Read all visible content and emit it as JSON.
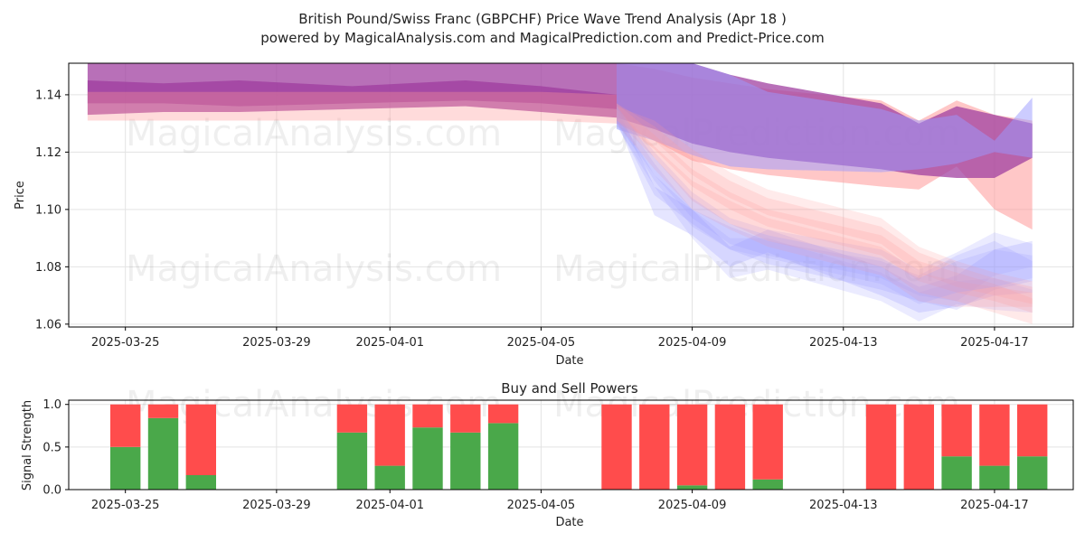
{
  "title_line1": "British Pound/Swiss Franc (GBPCHF) Price Wave Trend Analysis (Apr 18 )",
  "title_line2": "powered by MagicalAnalysis.com and MagicalPrediction.com and Predict-Price.com",
  "watermarks": [
    "MagicalAnalysis.com",
    "MagicalPrediction.com"
  ],
  "colors": {
    "buy": "#4aa84a",
    "sell": "#ff4c4c",
    "band_red": "#ff9999",
    "band_blue": "#9999ff",
    "band_purple": "#a040a0"
  },
  "chart_data": [
    {
      "type": "area",
      "xlabel": "Date",
      "ylabel": "Price",
      "xlim": [
        "2025-03-23T12",
        "2025-04-19T02"
      ],
      "ylim": [
        1.059,
        1.151
      ],
      "x_ticks": [
        "2025-03-25",
        "2025-03-29",
        "2025-04-01",
        "2025-04-05",
        "2025-04-09",
        "2025-04-13",
        "2025-04-17"
      ],
      "y_ticks": [
        1.06,
        1.08,
        1.1,
        1.12,
        1.14
      ],
      "grid": true,
      "history_dates": [
        "2025-03-24",
        "2025-03-26",
        "2025-03-28",
        "2025-03-31",
        "2025-04-03",
        "2025-04-05",
        "2025-04-07"
      ],
      "forecast_dates": [
        "2025-04-07",
        "2025-04-08",
        "2025-04-09",
        "2025-04-10",
        "2025-04-11",
        "2025-04-14",
        "2025-04-15",
        "2025-04-16",
        "2025-04-17",
        "2025-04-18"
      ],
      "series": [
        {
          "color": "purple",
          "opacity": 0.75,
          "lower": [
            1.133,
            1.134,
            1.134,
            1.135,
            1.136,
            1.134,
            1.132
          ],
          "upper": [
            1.151,
            1.151,
            1.151,
            1.151,
            1.151,
            1.151,
            1.151
          ]
        },
        {
          "color": "purple",
          "opacity": 0.8,
          "lower": [
            1.137,
            1.137,
            1.136,
            1.137,
            1.138,
            1.137,
            1.135
          ],
          "upper": [
            1.145,
            1.144,
            1.145,
            1.143,
            1.145,
            1.143,
            1.14
          ]
        },
        {
          "color": "red",
          "opacity": 0.35,
          "lower": [
            1.131,
            1.131,
            1.131,
            1.131,
            1.131,
            1.131,
            1.13
          ],
          "upper": [
            1.141,
            1.141,
            1.141,
            1.141,
            1.141,
            1.141,
            1.14
          ]
        },
        {
          "color": "red",
          "opacity": 0.55,
          "lower": [
            1.13,
            1.124,
            1.117,
            1.114,
            1.112,
            1.108,
            1.107,
            1.115,
            1.1,
            1.093
          ],
          "upper": [
            1.151,
            1.149,
            1.146,
            1.144,
            1.142,
            1.138,
            1.131,
            1.138,
            1.133,
            1.131
          ]
        },
        {
          "color": "purple",
          "opacity": 0.75,
          "lower": [
            1.132,
            1.128,
            1.123,
            1.12,
            1.118,
            1.114,
            1.112,
            1.111,
            1.111,
            1.118
          ],
          "upper": [
            1.151,
            1.151,
            1.151,
            1.147,
            1.144,
            1.137,
            1.13,
            1.136,
            1.133,
            1.13
          ]
        },
        {
          "color": "blue",
          "opacity": 0.5,
          "lower": [
            1.128,
            1.124,
            1.119,
            1.115,
            1.114,
            1.113,
            1.114,
            1.116,
            1.12,
            1.118
          ],
          "upper": [
            1.151,
            1.151,
            1.151,
            1.147,
            1.141,
            1.135,
            1.131,
            1.133,
            1.124,
            1.139
          ]
        },
        {
          "color": "blue",
          "opacity": 0.25,
          "lower": [
            1.131,
            1.098,
            1.091,
            1.08,
            1.085,
            1.07,
            1.064,
            1.066,
            1.07,
            1.071
          ],
          "upper": [
            1.136,
            1.108,
            1.1,
            1.087,
            1.093,
            1.08,
            1.073,
            1.077,
            1.086,
            1.089
          ]
        },
        {
          "color": "blue",
          "opacity": 0.22,
          "lower": [
            1.13,
            1.105,
            1.095,
            1.086,
            1.081,
            1.072,
            1.068,
            1.065,
            1.072,
            1.075
          ],
          "upper": [
            1.134,
            1.112,
            1.1,
            1.094,
            1.089,
            1.082,
            1.077,
            1.084,
            1.089,
            1.082
          ]
        },
        {
          "color": "blue",
          "opacity": 0.2,
          "lower": [
            1.129,
            1.108,
            1.09,
            1.076,
            1.079,
            1.068,
            1.061,
            1.067,
            1.065,
            1.064
          ],
          "upper": [
            1.135,
            1.116,
            1.1,
            1.09,
            1.09,
            1.078,
            1.071,
            1.075,
            1.076,
            1.072
          ]
        },
        {
          "color": "blue",
          "opacity": 0.2,
          "lower": [
            1.13,
            1.112,
            1.097,
            1.088,
            1.084,
            1.076,
            1.07,
            1.068,
            1.077,
            1.08
          ],
          "upper": [
            1.136,
            1.12,
            1.106,
            1.097,
            1.093,
            1.086,
            1.079,
            1.085,
            1.092,
            1.088
          ]
        },
        {
          "color": "red",
          "opacity": 0.22,
          "lower": [
            1.131,
            1.118,
            1.103,
            1.095,
            1.089,
            1.08,
            1.071,
            1.068,
            1.064,
            1.06
          ],
          "upper": [
            1.137,
            1.126,
            1.114,
            1.106,
            1.1,
            1.091,
            1.082,
            1.078,
            1.074,
            1.069
          ]
        },
        {
          "color": "red",
          "opacity": 0.22,
          "lower": [
            1.131,
            1.121,
            1.108,
            1.1,
            1.094,
            1.084,
            1.075,
            1.071,
            1.068,
            1.064
          ],
          "upper": [
            1.137,
            1.129,
            1.118,
            1.11,
            1.104,
            1.094,
            1.085,
            1.08,
            1.076,
            1.073
          ]
        },
        {
          "color": "red",
          "opacity": 0.2,
          "lower": [
            1.131,
            1.124,
            1.112,
            1.104,
            1.098,
            1.088,
            1.078,
            1.073,
            1.07,
            1.067
          ],
          "upper": [
            1.136,
            1.131,
            1.121,
            1.113,
            1.107,
            1.097,
            1.087,
            1.082,
            1.078,
            1.075
          ]
        },
        {
          "color": "red",
          "opacity": 0.2,
          "lower": [
            1.13,
            1.114,
            1.1,
            1.093,
            1.087,
            1.077,
            1.068,
            1.066,
            1.066,
            1.066
          ],
          "upper": [
            1.135,
            1.122,
            1.11,
            1.103,
            1.097,
            1.087,
            1.078,
            1.075,
            1.073,
            1.071
          ]
        },
        {
          "color": "blue",
          "opacity": 0.2,
          "lower": [
            1.131,
            1.11,
            1.094,
            1.086,
            1.083,
            1.074,
            1.067,
            1.071,
            1.073,
            1.076
          ],
          "upper": [
            1.136,
            1.118,
            1.104,
            1.095,
            1.091,
            1.083,
            1.076,
            1.082,
            1.086,
            1.084
          ]
        }
      ]
    },
    {
      "type": "bar",
      "title": "Buy and Sell Powers",
      "xlabel": "Date",
      "ylabel": "Signal Strength",
      "xlim": [
        "2025-03-23T12",
        "2025-04-19T02"
      ],
      "ylim": [
        0,
        1.05
      ],
      "x_ticks": [
        "2025-03-25",
        "2025-03-29",
        "2025-04-01",
        "2025-04-05",
        "2025-04-09",
        "2025-04-13",
        "2025-04-17"
      ],
      "y_ticks": [
        0.0,
        0.5,
        1.0
      ],
      "grid": true,
      "dates": [
        "2025-03-25",
        "2025-03-26",
        "2025-03-27",
        "2025-03-31",
        "2025-04-01",
        "2025-04-02",
        "2025-04-03",
        "2025-04-04",
        "2025-04-07",
        "2025-04-08",
        "2025-04-09",
        "2025-04-10",
        "2025-04-11",
        "2025-04-14",
        "2025-04-15",
        "2025-04-16",
        "2025-04-17",
        "2025-04-18"
      ],
      "buy": [
        0.5,
        0.84,
        0.17,
        0.67,
        0.28,
        0.73,
        0.67,
        0.78,
        0.0,
        0.0,
        0.05,
        0.0,
        0.12,
        0.0,
        0.0,
        0.39,
        0.28,
        0.39
      ],
      "sell": [
        0.5,
        0.16,
        0.83,
        0.33,
        0.72,
        0.27,
        0.33,
        0.22,
        1.0,
        1.0,
        0.95,
        1.0,
        0.88,
        1.0,
        1.0,
        0.61,
        0.72,
        0.61
      ]
    }
  ]
}
